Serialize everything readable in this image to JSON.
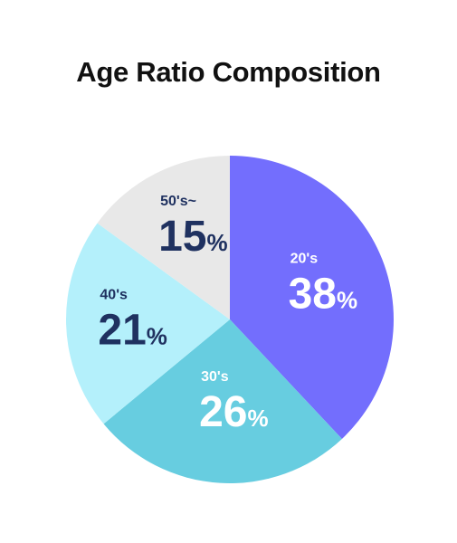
{
  "chart_data": {
    "type": "pie",
    "title": "Age Ratio Composition",
    "slices": [
      {
        "label": "20's",
        "value": 38,
        "color": "#736efd",
        "text_color": "#ffffff"
      },
      {
        "label": "30's",
        "value": 26,
        "color": "#67cde0",
        "text_color": "#ffffff"
      },
      {
        "label": "40's",
        "value": 21,
        "color": "#b4f0fb",
        "text_color": "#1f3160"
      },
      {
        "label": "50's~",
        "value": 15,
        "color": "#e8e8e8",
        "text_color": "#1f3160"
      }
    ],
    "value_suffix": "%"
  }
}
